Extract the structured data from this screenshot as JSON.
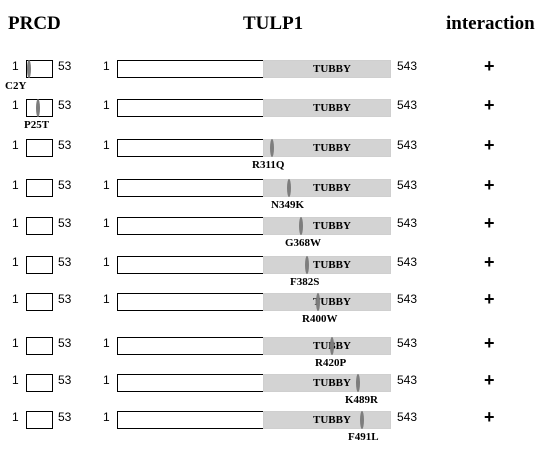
{
  "headers": {
    "prcd": "PRCD",
    "tulp1": "TULP1",
    "interaction": "interaction"
  },
  "prcd": {
    "start": "1",
    "end": "53"
  },
  "tulp1": {
    "start": "1",
    "end": "543",
    "domain": "TUBBY"
  },
  "rows": [
    {
      "mutation": "C2Y",
      "protein": "PRCD",
      "interaction": "+"
    },
    {
      "mutation": "P25T",
      "protein": "PRCD",
      "interaction": "+"
    },
    {
      "mutation": "R311Q",
      "protein": "TULP1",
      "interaction": "+"
    },
    {
      "mutation": "N349K",
      "protein": "TULP1",
      "interaction": "+"
    },
    {
      "mutation": "G368W",
      "protein": "TULP1",
      "interaction": "+"
    },
    {
      "mutation": "F382S",
      "protein": "TULP1",
      "interaction": "+"
    },
    {
      "mutation": "R400W",
      "protein": "TULP1",
      "interaction": "+"
    },
    {
      "mutation": "R420P",
      "protein": "TULP1",
      "interaction": "+"
    },
    {
      "mutation": "K489R",
      "protein": "TULP1",
      "interaction": "+"
    },
    {
      "mutation": "F491L",
      "protein": "TULP1",
      "interaction": "+"
    }
  ]
}
